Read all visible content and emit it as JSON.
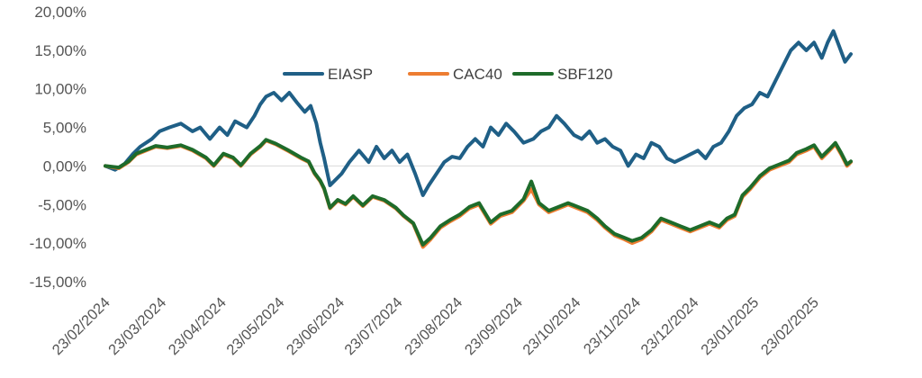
{
  "chart_data": {
    "type": "line",
    "title": "",
    "xlabel": "",
    "ylabel": "",
    "x_start": "2024-02-23",
    "x_end": "2025-03-14",
    "ylim": [
      -15,
      20
    ],
    "yticks": [
      -15,
      -10,
      -5,
      0,
      5,
      10,
      15,
      20
    ],
    "ytick_labels": [
      "-15,00%",
      "-10,00%",
      "-5,00%",
      "0,00%",
      "5,00%",
      "10,00%",
      "15,00%",
      "20,00%"
    ],
    "xtick_labels": [
      "23/02/2024",
      "23/03/2024",
      "23/04/2024",
      "23/05/2024",
      "23/06/2024",
      "23/07/2024",
      "23/08/2024",
      "23/09/2024",
      "23/10/2024",
      "23/11/2024",
      "23/12/2024",
      "23/01/2025",
      "23/02/2025"
    ],
    "xtick_dates": [
      "2024-02-23",
      "2024-03-23",
      "2024-04-23",
      "2024-05-23",
      "2024-06-23",
      "2024-07-23",
      "2024-08-23",
      "2024-09-23",
      "2024-10-23",
      "2024-11-23",
      "2024-12-23",
      "2025-01-23",
      "2025-02-23"
    ],
    "grid": false,
    "zero_line": true,
    "legend": {
      "placement": "top-center"
    },
    "series": [
      {
        "name": "EIASP",
        "color": "#1f5f86",
        "points": [
          [
            "2024-02-23",
            0.0
          ],
          [
            "2024-02-28",
            -0.5
          ],
          [
            "2024-03-04",
            0.3
          ],
          [
            "2024-03-08",
            1.5
          ],
          [
            "2024-03-12",
            2.5
          ],
          [
            "2024-03-18",
            3.5
          ],
          [
            "2024-03-22",
            4.5
          ],
          [
            "2024-03-27",
            5.0
          ],
          [
            "2024-04-02",
            5.5
          ],
          [
            "2024-04-08",
            4.5
          ],
          [
            "2024-04-12",
            5.0
          ],
          [
            "2024-04-17",
            3.5
          ],
          [
            "2024-04-22",
            5.0
          ],
          [
            "2024-04-26",
            4.0
          ],
          [
            "2024-04-30",
            5.8
          ],
          [
            "2024-05-06",
            5.0
          ],
          [
            "2024-05-10",
            6.5
          ],
          [
            "2024-05-13",
            8.0
          ],
          [
            "2024-05-16",
            9.0
          ],
          [
            "2024-05-20",
            9.5
          ],
          [
            "2024-05-24",
            8.5
          ],
          [
            "2024-05-28",
            9.5
          ],
          [
            "2024-06-01",
            8.2
          ],
          [
            "2024-06-05",
            7.0
          ],
          [
            "2024-06-08",
            7.8
          ],
          [
            "2024-06-11",
            5.5
          ],
          [
            "2024-06-13",
            3.0
          ],
          [
            "2024-06-15",
            1.0
          ],
          [
            "2024-06-18",
            -2.5
          ],
          [
            "2024-06-24",
            -1.0
          ],
          [
            "2024-06-28",
            0.5
          ],
          [
            "2024-07-03",
            2.0
          ],
          [
            "2024-07-08",
            0.5
          ],
          [
            "2024-07-12",
            2.5
          ],
          [
            "2024-07-16",
            1.0
          ],
          [
            "2024-07-20",
            2.0
          ],
          [
            "2024-07-24",
            0.5
          ],
          [
            "2024-07-28",
            1.5
          ],
          [
            "2024-08-01",
            -1.0
          ],
          [
            "2024-08-05",
            -3.8
          ],
          [
            "2024-08-08",
            -2.5
          ],
          [
            "2024-08-12",
            -1.0
          ],
          [
            "2024-08-16",
            0.5
          ],
          [
            "2024-08-20",
            1.2
          ],
          [
            "2024-08-24",
            1.0
          ],
          [
            "2024-08-28",
            2.5
          ],
          [
            "2024-09-01",
            3.5
          ],
          [
            "2024-09-05",
            2.5
          ],
          [
            "2024-09-09",
            5.0
          ],
          [
            "2024-09-13",
            4.0
          ],
          [
            "2024-09-17",
            5.5
          ],
          [
            "2024-09-21",
            4.5
          ],
          [
            "2024-09-26",
            3.0
          ],
          [
            "2024-10-01",
            3.5
          ],
          [
            "2024-10-05",
            4.5
          ],
          [
            "2024-10-09",
            5.0
          ],
          [
            "2024-10-13",
            6.5
          ],
          [
            "2024-10-17",
            5.5
          ],
          [
            "2024-10-22",
            4.0
          ],
          [
            "2024-10-26",
            3.5
          ],
          [
            "2024-10-30",
            4.5
          ],
          [
            "2024-11-03",
            3.0
          ],
          [
            "2024-11-07",
            3.5
          ],
          [
            "2024-11-11",
            2.5
          ],
          [
            "2024-11-15",
            2.0
          ],
          [
            "2024-11-19",
            0.0
          ],
          [
            "2024-11-23",
            1.5
          ],
          [
            "2024-11-27",
            1.0
          ],
          [
            "2024-12-01",
            3.0
          ],
          [
            "2024-12-05",
            2.5
          ],
          [
            "2024-12-09",
            1.0
          ],
          [
            "2024-12-13",
            0.5
          ],
          [
            "2024-12-17",
            1.0
          ],
          [
            "2024-12-21",
            1.5
          ],
          [
            "2024-12-25",
            2.0
          ],
          [
            "2024-12-29",
            1.0
          ],
          [
            "2025-01-02",
            2.5
          ],
          [
            "2025-01-06",
            3.0
          ],
          [
            "2025-01-10",
            4.5
          ],
          [
            "2025-01-14",
            6.5
          ],
          [
            "2025-01-18",
            7.5
          ],
          [
            "2025-01-22",
            8.0
          ],
          [
            "2025-01-26",
            9.5
          ],
          [
            "2025-01-30",
            9.0
          ],
          [
            "2025-02-03",
            11.0
          ],
          [
            "2025-02-07",
            13.0
          ],
          [
            "2025-02-11",
            15.0
          ],
          [
            "2025-02-15",
            16.0
          ],
          [
            "2025-02-19",
            15.0
          ],
          [
            "2025-02-23",
            16.0
          ],
          [
            "2025-02-27",
            14.0
          ],
          [
            "2025-03-02",
            16.0
          ],
          [
            "2025-03-05",
            17.5
          ],
          [
            "2025-03-08",
            15.5
          ],
          [
            "2025-03-11",
            13.5
          ],
          [
            "2025-03-14",
            14.5
          ]
        ]
      },
      {
        "name": "CAC40",
        "color": "#ed7d31",
        "points": [
          [
            "2024-02-23",
            0.0
          ],
          [
            "2024-03-01",
            -0.3
          ],
          [
            "2024-03-06",
            0.5
          ],
          [
            "2024-03-10",
            1.5
          ],
          [
            "2024-03-15",
            2.0
          ],
          [
            "2024-03-20",
            2.5
          ],
          [
            "2024-03-26",
            2.3
          ],
          [
            "2024-04-02",
            2.6
          ],
          [
            "2024-04-08",
            2.0
          ],
          [
            "2024-04-15",
            1.0
          ],
          [
            "2024-04-19",
            0.0
          ],
          [
            "2024-04-24",
            1.5
          ],
          [
            "2024-04-29",
            1.0
          ],
          [
            "2024-05-03",
            0.0
          ],
          [
            "2024-05-08",
            1.5
          ],
          [
            "2024-05-13",
            2.5
          ],
          [
            "2024-05-16",
            3.3
          ],
          [
            "2024-05-21",
            2.8
          ],
          [
            "2024-05-27",
            2.0
          ],
          [
            "2024-06-03",
            1.0
          ],
          [
            "2024-06-07",
            0.5
          ],
          [
            "2024-06-10",
            -1.0
          ],
          [
            "2024-06-13",
            -2.0
          ],
          [
            "2024-06-15",
            -3.0
          ],
          [
            "2024-06-18",
            -5.5
          ],
          [
            "2024-06-22",
            -4.5
          ],
          [
            "2024-06-26",
            -5.0
          ],
          [
            "2024-06-30",
            -4.0
          ],
          [
            "2024-07-05",
            -5.2
          ],
          [
            "2024-07-10",
            -4.0
          ],
          [
            "2024-07-16",
            -4.5
          ],
          [
            "2024-07-22",
            -5.5
          ],
          [
            "2024-07-26",
            -6.5
          ],
          [
            "2024-07-31",
            -7.5
          ],
          [
            "2024-08-05",
            -10.5
          ],
          [
            "2024-08-09",
            -9.5
          ],
          [
            "2024-08-14",
            -8.0
          ],
          [
            "2024-08-19",
            -7.2
          ],
          [
            "2024-08-24",
            -6.5
          ],
          [
            "2024-08-29",
            -5.5
          ],
          [
            "2024-09-03",
            -5.0
          ],
          [
            "2024-09-09",
            -7.5
          ],
          [
            "2024-09-14",
            -6.5
          ],
          [
            "2024-09-20",
            -6.0
          ],
          [
            "2024-09-26",
            -4.5
          ],
          [
            "2024-09-30",
            -3.0
          ],
          [
            "2024-10-04",
            -5.0
          ],
          [
            "2024-10-09",
            -6.0
          ],
          [
            "2024-10-14",
            -5.5
          ],
          [
            "2024-10-19",
            -5.0
          ],
          [
            "2024-10-24",
            -5.5
          ],
          [
            "2024-10-29",
            -6.0
          ],
          [
            "2024-11-03",
            -7.0
          ],
          [
            "2024-11-07",
            -8.0
          ],
          [
            "2024-11-12",
            -9.0
          ],
          [
            "2024-11-17",
            -9.5
          ],
          [
            "2024-11-21",
            -10.0
          ],
          [
            "2024-11-26",
            -9.5
          ],
          [
            "2024-12-01",
            -8.5
          ],
          [
            "2024-12-06",
            -7.0
          ],
          [
            "2024-12-11",
            -7.5
          ],
          [
            "2024-12-16",
            -8.0
          ],
          [
            "2024-12-21",
            -8.5
          ],
          [
            "2024-12-26",
            -8.0
          ],
          [
            "2024-12-31",
            -7.5
          ],
          [
            "2025-01-05",
            -8.0
          ],
          [
            "2025-01-09",
            -7.0
          ],
          [
            "2025-01-13",
            -6.5
          ],
          [
            "2025-01-17",
            -4.0
          ],
          [
            "2025-01-21",
            -3.0
          ],
          [
            "2025-01-26",
            -1.5
          ],
          [
            "2025-01-31",
            -0.5
          ],
          [
            "2025-02-05",
            0.0
          ],
          [
            "2025-02-10",
            0.5
          ],
          [
            "2025-02-14",
            1.5
          ],
          [
            "2025-02-19",
            2.0
          ],
          [
            "2025-02-23",
            2.5
          ],
          [
            "2025-02-27",
            1.0
          ],
          [
            "2025-03-03",
            2.0
          ],
          [
            "2025-03-06",
            2.8
          ],
          [
            "2025-03-09",
            1.5
          ],
          [
            "2025-03-12",
            0.0
          ],
          [
            "2025-03-14",
            0.5
          ]
        ]
      },
      {
        "name": "SBF120",
        "color": "#1e6b2a",
        "points": [
          [
            "2024-02-23",
            0.0
          ],
          [
            "2024-03-01",
            -0.2
          ],
          [
            "2024-03-06",
            0.6
          ],
          [
            "2024-03-10",
            1.6
          ],
          [
            "2024-03-15",
            2.1
          ],
          [
            "2024-03-20",
            2.6
          ],
          [
            "2024-03-26",
            2.4
          ],
          [
            "2024-04-02",
            2.7
          ],
          [
            "2024-04-08",
            2.1
          ],
          [
            "2024-04-15",
            1.1
          ],
          [
            "2024-04-19",
            0.1
          ],
          [
            "2024-04-24",
            1.6
          ],
          [
            "2024-04-29",
            1.1
          ],
          [
            "2024-05-03",
            0.1
          ],
          [
            "2024-05-08",
            1.6
          ],
          [
            "2024-05-13",
            2.6
          ],
          [
            "2024-05-16",
            3.4
          ],
          [
            "2024-05-21",
            2.9
          ],
          [
            "2024-05-27",
            2.1
          ],
          [
            "2024-06-03",
            1.1
          ],
          [
            "2024-06-07",
            0.6
          ],
          [
            "2024-06-10",
            -0.9
          ],
          [
            "2024-06-13",
            -1.9
          ],
          [
            "2024-06-15",
            -2.9
          ],
          [
            "2024-06-18",
            -5.4
          ],
          [
            "2024-06-22",
            -4.4
          ],
          [
            "2024-06-26",
            -4.9
          ],
          [
            "2024-06-30",
            -3.9
          ],
          [
            "2024-07-05",
            -5.1
          ],
          [
            "2024-07-10",
            -3.9
          ],
          [
            "2024-07-16",
            -4.4
          ],
          [
            "2024-07-22",
            -5.4
          ],
          [
            "2024-07-26",
            -6.4
          ],
          [
            "2024-07-31",
            -7.4
          ],
          [
            "2024-08-05",
            -10.2
          ],
          [
            "2024-08-09",
            -9.3
          ],
          [
            "2024-08-14",
            -7.8
          ],
          [
            "2024-08-19",
            -7.0
          ],
          [
            "2024-08-24",
            -6.3
          ],
          [
            "2024-08-29",
            -5.3
          ],
          [
            "2024-09-03",
            -4.8
          ],
          [
            "2024-09-09",
            -7.3
          ],
          [
            "2024-09-14",
            -6.3
          ],
          [
            "2024-09-20",
            -5.8
          ],
          [
            "2024-09-26",
            -4.3
          ],
          [
            "2024-09-30",
            -2.0
          ],
          [
            "2024-10-04",
            -4.8
          ],
          [
            "2024-10-09",
            -5.8
          ],
          [
            "2024-10-14",
            -5.3
          ],
          [
            "2024-10-19",
            -4.8
          ],
          [
            "2024-10-24",
            -5.3
          ],
          [
            "2024-10-29",
            -5.8
          ],
          [
            "2024-11-03",
            -6.8
          ],
          [
            "2024-11-07",
            -7.8
          ],
          [
            "2024-11-12",
            -8.8
          ],
          [
            "2024-11-17",
            -9.3
          ],
          [
            "2024-11-21",
            -9.7
          ],
          [
            "2024-11-26",
            -9.3
          ],
          [
            "2024-12-01",
            -8.3
          ],
          [
            "2024-12-06",
            -6.8
          ],
          [
            "2024-12-11",
            -7.3
          ],
          [
            "2024-12-16",
            -7.8
          ],
          [
            "2024-12-21",
            -8.3
          ],
          [
            "2024-12-26",
            -7.8
          ],
          [
            "2024-12-31",
            -7.3
          ],
          [
            "2025-01-05",
            -7.8
          ],
          [
            "2025-01-09",
            -6.8
          ],
          [
            "2025-01-13",
            -6.3
          ],
          [
            "2025-01-17",
            -3.8
          ],
          [
            "2025-01-21",
            -2.8
          ],
          [
            "2025-01-26",
            -1.3
          ],
          [
            "2025-01-31",
            -0.3
          ],
          [
            "2025-02-05",
            0.2
          ],
          [
            "2025-02-10",
            0.7
          ],
          [
            "2025-02-14",
            1.7
          ],
          [
            "2025-02-19",
            2.2
          ],
          [
            "2025-02-23",
            2.7
          ],
          [
            "2025-02-27",
            1.2
          ],
          [
            "2025-03-03",
            2.2
          ],
          [
            "2025-03-06",
            3.0
          ],
          [
            "2025-03-09",
            1.7
          ],
          [
            "2025-03-12",
            0.2
          ],
          [
            "2025-03-14",
            0.6
          ]
        ]
      }
    ]
  }
}
